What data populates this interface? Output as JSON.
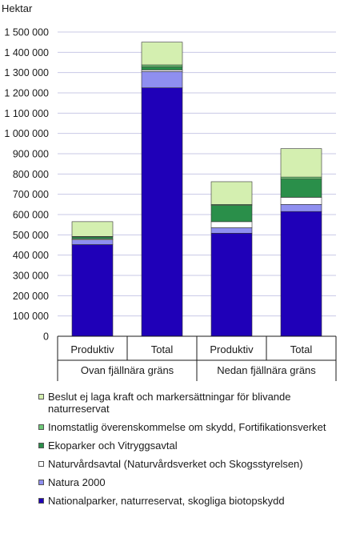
{
  "chart_data": {
    "type": "bar",
    "stacked": true,
    "ylabel": "Hektar",
    "ylim": [
      0,
      1500000
    ],
    "yticks": [
      0,
      100000,
      200000,
      300000,
      400000,
      500000,
      600000,
      700000,
      800000,
      900000,
      1000000,
      1100000,
      1200000,
      1300000,
      1400000,
      1500000
    ],
    "ytick_labels": [
      "0",
      "100 000",
      "200 000",
      "300 000",
      "400 000",
      "500 000",
      "600 000",
      "700 000",
      "800 000",
      "900 000",
      "1 000 000",
      "1 100 000",
      "1 200 000",
      "1 300 000",
      "1 400 000",
      "1 500 000"
    ],
    "grid": true,
    "legend_position": "bottom",
    "categories": [
      "Produktiv",
      "Total",
      "Produktiv",
      "Total"
    ],
    "groups": [
      {
        "label": "Ovan fjällnära gräns",
        "categories": [
          0,
          1
        ]
      },
      {
        "label": "Nedan fjällnära gräns",
        "categories": [
          2,
          3
        ]
      }
    ],
    "series": [
      {
        "name": "Nationalparker, naturreservat, skogliga biotopskydd",
        "color": "#1f00b8",
        "values": [
          452000,
          1225000,
          508000,
          615000
        ]
      },
      {
        "name": "Natura 2000",
        "color": "#8f8ff0",
        "values": [
          23000,
          80000,
          27000,
          35000
        ]
      },
      {
        "name": "Naturvårdsavtal (Naturvårdsverket och Skogsstyrelsen)",
        "color": "#ffffff",
        "values": [
          5000,
          8000,
          30000,
          35000
        ]
      },
      {
        "name": "Ekoparker och Vitryggsavtal",
        "color": "#2a8f4a",
        "values": [
          10000,
          15000,
          80000,
          90000
        ]
      },
      {
        "name": "Inomstatlig överenskommelse om skydd, Fortifikationsverket",
        "color": "#6fc978",
        "values": [
          2000,
          10000,
          5000,
          10000
        ]
      },
      {
        "name": "Beslut ej laga kraft och markersättningar för blivande naturreservat",
        "color": "#d4efb0",
        "values": [
          73000,
          112000,
          112000,
          140000
        ]
      }
    ]
  }
}
